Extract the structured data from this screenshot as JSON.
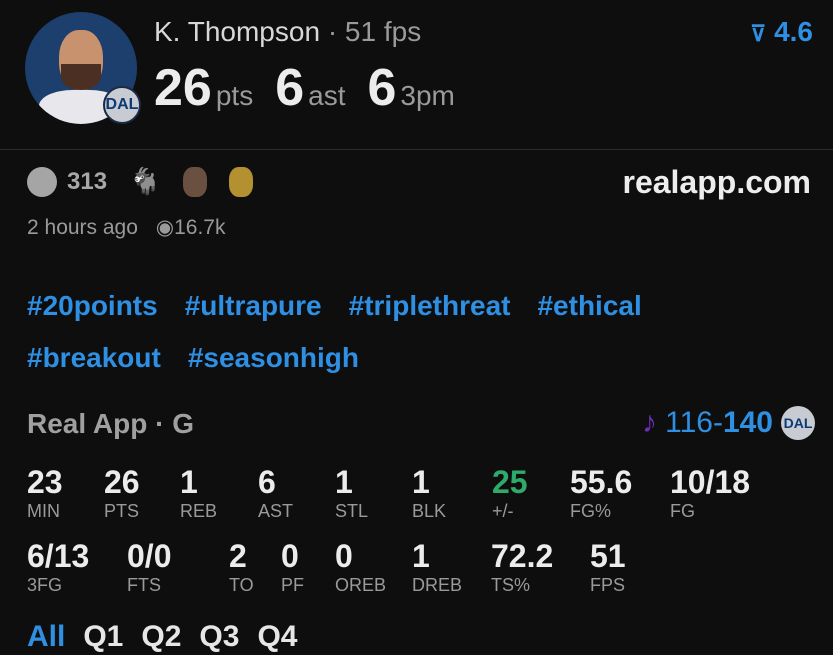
{
  "player": {
    "name": "K. Thompson",
    "fps_label": "· 51 fps",
    "stats": [
      {
        "value": "26",
        "label": "pts"
      },
      {
        "value": "6",
        "label": "ast"
      },
      {
        "value": "6",
        "label": "3pm"
      }
    ],
    "rating": "4.6",
    "rating_icon": "rating-arrow-icon",
    "team_badge": "DAL"
  },
  "post": {
    "reaction_count": "313",
    "reactions": [
      "smiley-icon",
      "goat-emoji",
      "face-emoji-1",
      "face-emoji-2"
    ],
    "site": "realapp.com",
    "time": "2 hours ago",
    "views": "16.7k"
  },
  "hashtags": [
    "#20points",
    "#ultrapure",
    "#triplethreat",
    "#ethical",
    "#breakout",
    "#seasonhigh"
  ],
  "game": {
    "league": "Real App · G",
    "score_opp": "116",
    "score_sep": "-",
    "score_team": "140",
    "team_logo": "DAL"
  },
  "box": {
    "row1": [
      {
        "v": "23",
        "l": "MIN"
      },
      {
        "v": "26",
        "l": "PTS"
      },
      {
        "v": "1",
        "l": "REB"
      },
      {
        "v": "6",
        "l": "AST"
      },
      {
        "v": "1",
        "l": "STL"
      },
      {
        "v": "1",
        "l": "BLK"
      },
      {
        "v": "25",
        "l": "+/-"
      },
      {
        "v": "55.6",
        "l": "FG%"
      },
      {
        "v": "10/18",
        "l": "FG"
      }
    ],
    "row2": [
      {
        "v": "6/13",
        "l": "3FG"
      },
      {
        "v": "0/0",
        "l": "FTS"
      },
      {
        "v": "2",
        "l": "TO"
      },
      {
        "v": "0",
        "l": "PF"
      },
      {
        "v": "0",
        "l": "OREB"
      },
      {
        "v": "1",
        "l": "DREB"
      },
      {
        "v": "72.2",
        "l": "TS%"
      },
      {
        "v": "51",
        "l": "FPS"
      }
    ]
  },
  "colors": {
    "accent": "#2f8fe2",
    "positive": "#2eaa6a",
    "opponent": "#6a2fb8"
  },
  "tabs": [
    "All",
    "Q1",
    "Q2",
    "Q3",
    "Q4"
  ],
  "active_tab": "All"
}
